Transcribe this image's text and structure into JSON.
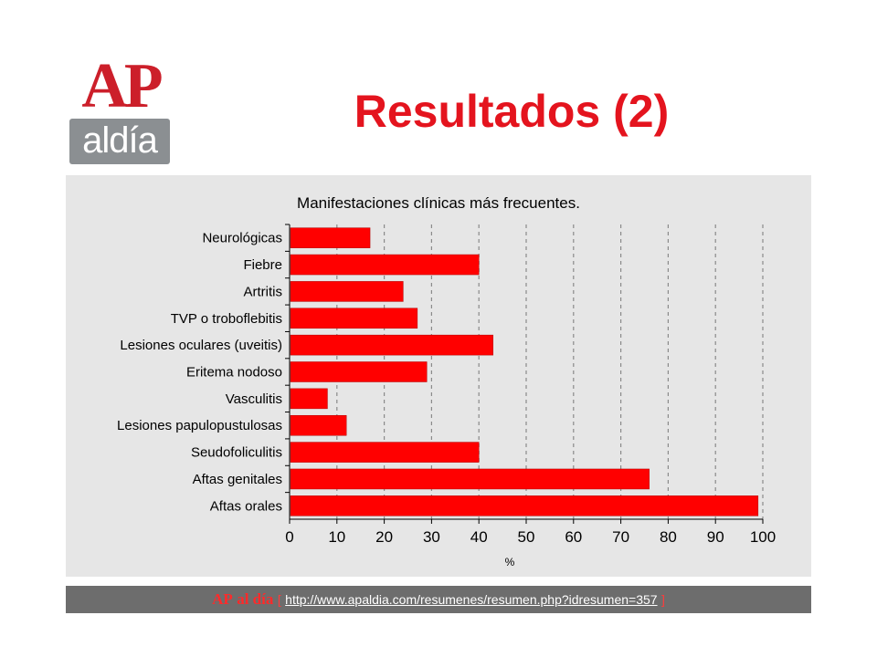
{
  "logo": {
    "ap": "AP",
    "aldia": "aldía"
  },
  "page": {
    "title": "Resultados (2)"
  },
  "colors": {
    "title": "#e4141e",
    "bar": "#ff0000",
    "panel": "#e6e6e6",
    "footer": "#6d6d6d"
  },
  "chart_data": {
    "type": "bar",
    "orientation": "horizontal",
    "title": "Manifestaciones clínicas más frecuentes.",
    "xlabel": "%",
    "ylabel": "",
    "xlim": [
      0,
      100
    ],
    "x_ticks": [
      "0",
      "10",
      "20",
      "30",
      "40",
      "50",
      "60",
      "70",
      "80",
      "90",
      "100"
    ],
    "grid": "vertical dashed",
    "categories": [
      "Neurológicas",
      "Fiebre",
      "Artritis",
      "TVP o troboflebitis",
      "Lesiones oculares (uveitis)",
      "Eritema nodoso",
      "Vasculitis",
      "Lesiones papulopustulosas",
      "Seudofoliculitis",
      "Aftas genitales",
      "Aftas orales"
    ],
    "values": [
      17,
      40,
      24,
      27,
      43,
      29,
      8,
      12,
      40,
      76,
      99
    ]
  },
  "footer": {
    "brand_ap": "AP",
    "brand_rest": "al día",
    "open_bracket": "[",
    "url": "http://www.apaldia.com/resumenes/resumen.php?idresumen=357",
    "close_bracket": "]"
  }
}
